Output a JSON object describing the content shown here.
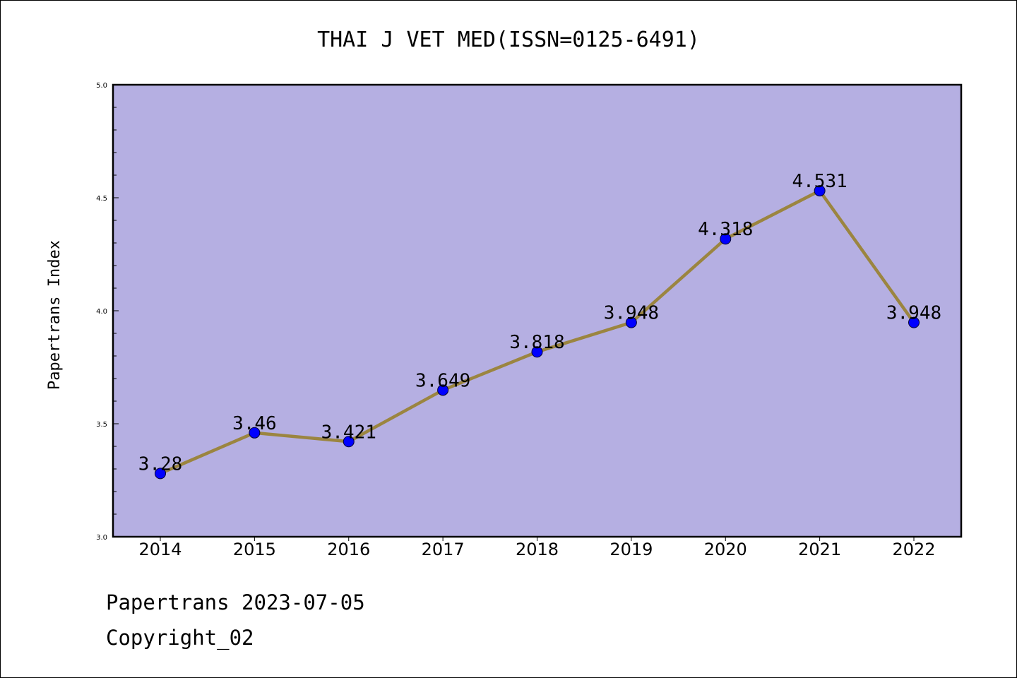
{
  "chart_data": {
    "type": "line",
    "title": "THAI J VET MED(ISSN=0125-6491)",
    "xlabel": "",
    "ylabel": "Papertrans Index",
    "x": [
      "2014",
      "2015",
      "2016",
      "2017",
      "2018",
      "2019",
      "2020",
      "2021",
      "2022"
    ],
    "series": [
      {
        "values": [
          3.28,
          3.46,
          3.421,
          3.649,
          3.818,
          3.948,
          4.318,
          4.531,
          3.948
        ],
        "labels": [
          "3.28",
          "3.46",
          "3.421",
          "3.649",
          "3.818",
          "3.948",
          "4.318",
          "4.531",
          "3.948"
        ]
      }
    ],
    "ylim": [
      3.0,
      5.0
    ],
    "yticks": [
      "3.0",
      "3.5",
      "4.0",
      "4.5",
      "5.0"
    ],
    "grid": false,
    "colors": {
      "plot_background": "#b5afe2",
      "line": "#9b8540",
      "marker": "#0000ff"
    }
  },
  "footer": {
    "line1": "Papertrans 2023-07-05",
    "line2": "Copyright_02"
  }
}
